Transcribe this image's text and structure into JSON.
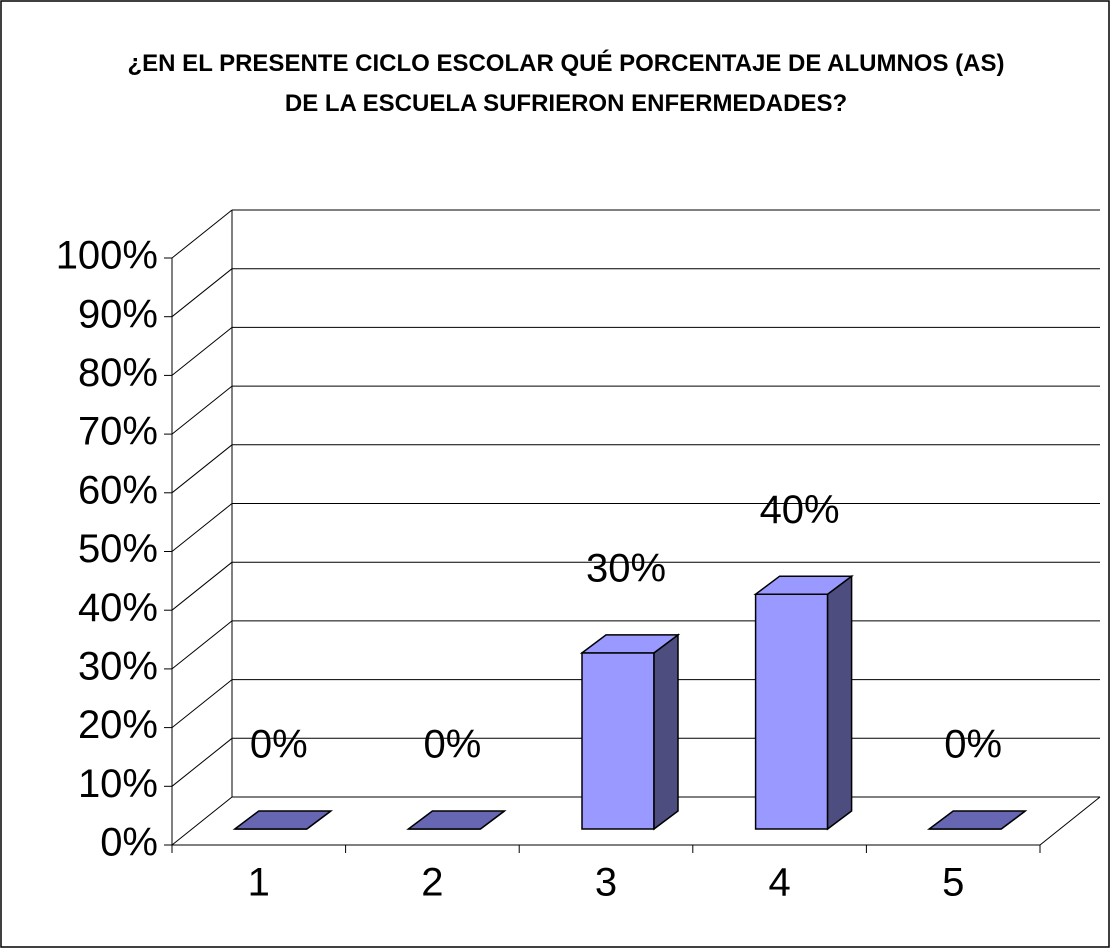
{
  "chart_data": {
    "type": "bar3d",
    "title": "¿EN EL PRESENTE CICLO ESCOLAR QUÉ PORCENTAJE DE ALUMNOS (AS) DE LA ESCUELA SUFRIERON ENFERMEDADES?",
    "categories": [
      "1",
      "2",
      "3",
      "4",
      "5"
    ],
    "values": [
      0,
      0,
      30,
      40,
      0
    ],
    "value_labels": [
      "0%",
      "0%",
      "30%",
      "40%",
      "0%"
    ],
    "color": "#9999ff",
    "ylim": [
      0,
      100
    ],
    "yticks": [
      {
        "value": 0,
        "label": "0%"
      },
      {
        "value": 10,
        "label": "10%"
      },
      {
        "value": 20,
        "label": "20%"
      },
      {
        "value": 30,
        "label": "30%"
      },
      {
        "value": 40,
        "label": "40%"
      },
      {
        "value": 50,
        "label": "50%"
      },
      {
        "value": 60,
        "label": "60%"
      },
      {
        "value": 70,
        "label": "70%"
      },
      {
        "value": 80,
        "label": "80%"
      },
      {
        "value": 90,
        "label": "90%"
      },
      {
        "value": 100,
        "label": "100%"
      }
    ],
    "grid": true
  }
}
